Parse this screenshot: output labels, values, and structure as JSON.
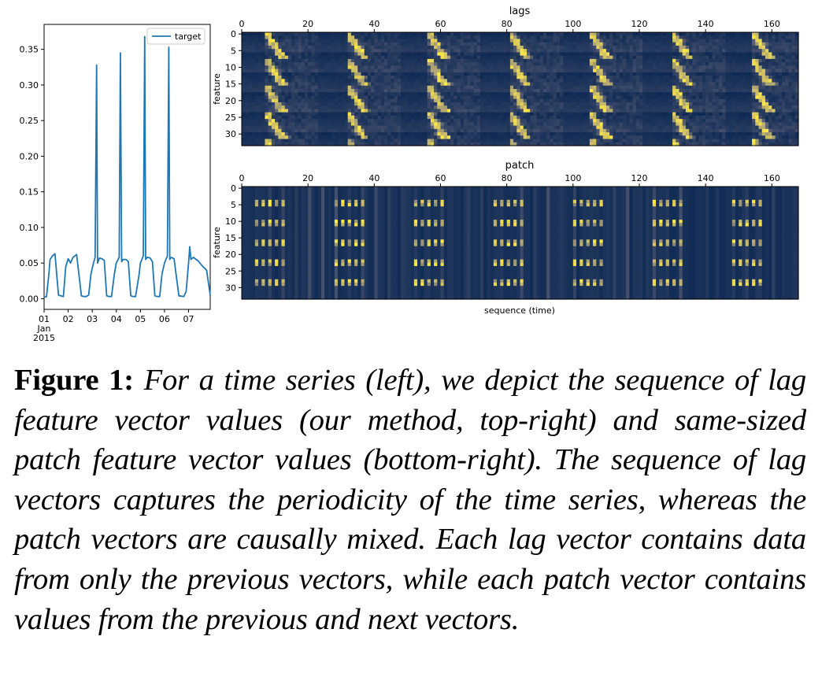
{
  "chart_data": [
    {
      "type": "line",
      "xlabel": "",
      "ylabel": "",
      "legend": "target",
      "legend_placement": "top-right",
      "ylim": [
        -0.015,
        0.385
      ],
      "xlim": [
        1.0,
        7.9
      ],
      "yticks": [
        0.0,
        0.05,
        0.1,
        0.15,
        0.2,
        0.25,
        0.3,
        0.35
      ],
      "ytick_labels": [
        "0.00",
        "0.05",
        "0.10",
        "0.15",
        "0.20",
        "0.25",
        "0.30",
        "0.35"
      ],
      "xticks": [
        1,
        2,
        3,
        4,
        5,
        6,
        7
      ],
      "xtick_labels": [
        "01",
        "02",
        "03",
        "04",
        "05",
        "06",
        "07"
      ],
      "xtick_sublabels": [
        "Jan",
        "2015"
      ],
      "series": [
        {
          "name": "target",
          "color": "#1f77b4",
          "x": [
            1.0,
            1.1,
            1.2,
            1.25,
            1.35,
            1.45,
            1.6,
            1.8,
            1.9,
            2.0,
            2.1,
            2.2,
            2.35,
            2.55,
            2.65,
            2.75,
            2.85,
            2.95,
            3.05,
            3.12,
            3.18,
            3.22,
            3.3,
            3.4,
            3.5,
            3.6,
            3.7,
            3.8,
            3.92,
            4.0,
            4.12,
            4.17,
            4.22,
            4.28,
            4.4,
            4.5,
            4.6,
            4.7,
            4.8,
            4.95,
            5.0,
            5.12,
            5.18,
            5.22,
            5.28,
            5.4,
            5.5,
            5.6,
            5.7,
            5.8,
            5.9,
            6.0,
            6.12,
            6.18,
            6.22,
            6.28,
            6.4,
            6.6,
            6.8,
            6.9,
            7.0,
            7.05,
            7.1,
            7.2,
            7.4,
            7.6,
            7.75,
            7.9
          ],
          "y": [
            0.002,
            0.003,
            0.035,
            0.055,
            0.06,
            0.063,
            0.005,
            0.003,
            0.045,
            0.056,
            0.05,
            0.058,
            0.062,
            0.004,
            0.003,
            0.003,
            0.005,
            0.035,
            0.05,
            0.058,
            0.328,
            0.05,
            0.057,
            0.056,
            0.054,
            0.004,
            0.003,
            0.003,
            0.035,
            0.05,
            0.058,
            0.345,
            0.052,
            0.055,
            0.055,
            0.052,
            0.004,
            0.003,
            0.003,
            0.035,
            0.05,
            0.06,
            0.368,
            0.055,
            0.058,
            0.057,
            0.052,
            0.004,
            0.003,
            0.003,
            0.035,
            0.05,
            0.06,
            0.353,
            0.055,
            0.058,
            0.056,
            0.004,
            0.003,
            0.01,
            0.05,
            0.073,
            0.055,
            0.058,
            0.053,
            0.045,
            0.04,
            0.005
          ]
        }
      ]
    },
    {
      "type": "heatmap",
      "title": "lags",
      "xlabel": "",
      "ylabel": "feature",
      "xlim": [
        0,
        168
      ],
      "ylim": [
        0,
        34
      ],
      "xticks": [
        0,
        20,
        40,
        60,
        80,
        100,
        120,
        140,
        160
      ],
      "yticks": [
        0,
        5,
        10,
        15,
        20,
        25,
        30
      ],
      "colormap": [
        "#00204d",
        "#414d6b",
        "#7c7b78",
        "#bcaf6f",
        "#ffea46"
      ],
      "period": 24.5,
      "pattern": "diagonal bright streaks repeating every 24 steps, starting at x=7, 31, 55, 79, 103, 127, 151"
    },
    {
      "type": "heatmap",
      "title": "patch",
      "xlabel": "sequence (time)",
      "ylabel": "feature",
      "xlim": [
        0,
        168
      ],
      "ylim": [
        0,
        34
      ],
      "xticks": [
        0,
        20,
        40,
        60,
        80,
        100,
        120,
        140,
        160
      ],
      "yticks": [
        0,
        5,
        10,
        15,
        20,
        25,
        30
      ],
      "colormap": [
        "#00204d",
        "#414d6b",
        "#7c7b78",
        "#bcaf6f",
        "#ffea46"
      ],
      "pattern": "vertical stripes with bright dots every 6 features, grouped in clusters each period"
    }
  ],
  "caption": {
    "label": "Figure 1:",
    "text": "For a time series (left), we depict the sequence of lag feature vector values (our method, top-right) and same-sized patch feature vector values (bottom-right). The sequence of lag vectors captures the periodicity of the time series, whereas the patch vectors are causally mixed. Each lag vector contains data from only the previous vectors, while each patch vector contains values from the previous and next vectors."
  }
}
